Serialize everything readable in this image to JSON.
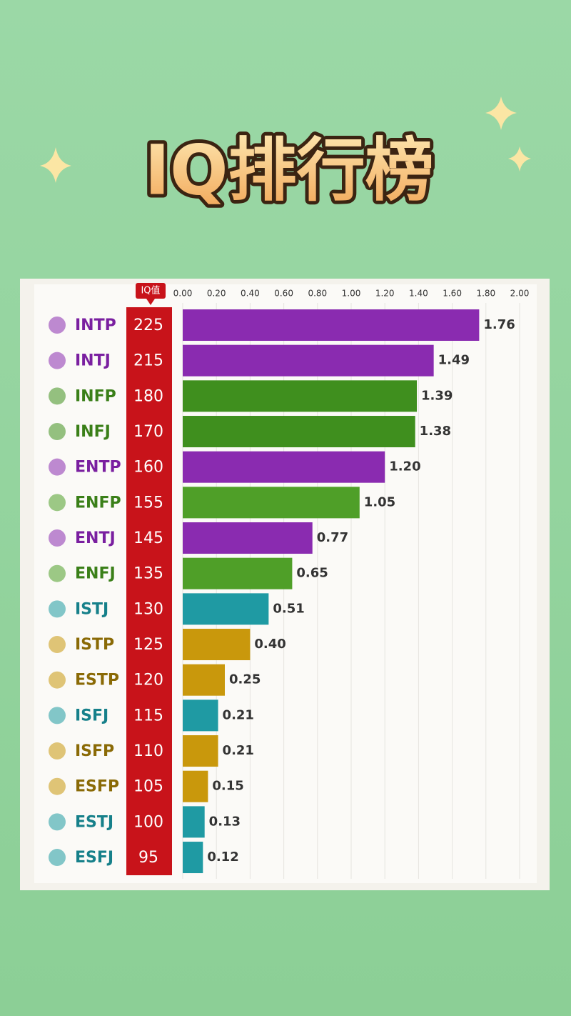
{
  "chart_data": {
    "type": "bar",
    "orientation": "horizontal",
    "title": "IQ排行榜",
    "iq_header": "IQ值",
    "categories": [
      "INTP",
      "INTJ",
      "INFP",
      "INFJ",
      "ENTP",
      "ENFP",
      "ENTJ",
      "ENFJ",
      "ISTJ",
      "ISTP",
      "ESTP",
      "ISFJ",
      "ISFP",
      "ESFP",
      "ESTJ",
      "ESFJ"
    ],
    "iq_values": [
      225,
      215,
      180,
      170,
      160,
      155,
      145,
      135,
      130,
      125,
      120,
      115,
      110,
      105,
      100,
      95
    ],
    "values": [
      1.76,
      1.49,
      1.39,
      1.38,
      1.2,
      1.05,
      0.77,
      0.65,
      0.51,
      0.4,
      0.25,
      0.21,
      0.21,
      0.15,
      0.13,
      0.12
    ],
    "value_labels": [
      "1.76",
      "1.49",
      "1.39",
      "1.38",
      "1.20",
      "1.05",
      "0.77",
      "0.65",
      "0.51",
      "0.40",
      "0.25",
      "0.21",
      "0.21",
      "0.15",
      "0.13",
      "0.12"
    ],
    "colors": [
      "#8a2bb0",
      "#8a2bb0",
      "#3f8f1e",
      "#3f8f1e",
      "#8a2bb0",
      "#4f9f28",
      "#8a2bb0",
      "#4f9f28",
      "#1f9aa3",
      "#c9980c",
      "#c9980c",
      "#1f9aa3",
      "#c9980c",
      "#c9980c",
      "#1f9aa3",
      "#1f9aa3"
    ],
    "label_colors": [
      "#7a1fa0",
      "#7a1fa0",
      "#3a7f18",
      "#3a7f18",
      "#7a1fa0",
      "#3a7f18",
      "#7a1fa0",
      "#3a7f18",
      "#16808a",
      "#8a6a06",
      "#8a6a06",
      "#16808a",
      "#8a6a06",
      "#8a6a06",
      "#16808a",
      "#16808a"
    ],
    "xlim": [
      0,
      2
    ],
    "xticks": [
      {
        "value": 0,
        "label": "0.00"
      },
      {
        "value": 0.2,
        "label": "0.20"
      },
      {
        "value": 0.4,
        "label": "0.40"
      },
      {
        "value": 0.6,
        "label": "0.60"
      },
      {
        "value": 0.8,
        "label": "0.80"
      },
      {
        "value": 1,
        "label": "1.00"
      },
      {
        "value": 1.2,
        "label": "1.20"
      },
      {
        "value": 1.4,
        "label": "1.40"
      },
      {
        "value": 1.6,
        "label": "1.60"
      },
      {
        "value": 1.8,
        "label": "1.80"
      },
      {
        "value": 2,
        "label": "2.00"
      }
    ],
    "grid": true
  }
}
